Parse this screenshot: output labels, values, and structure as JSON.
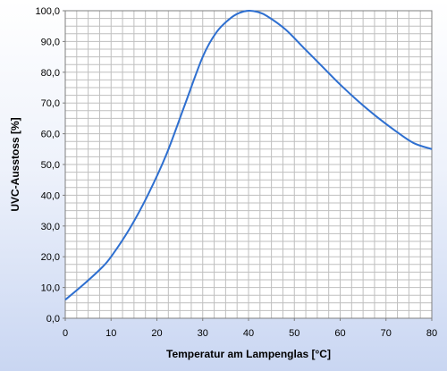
{
  "chart_data": {
    "type": "line",
    "title": "",
    "xlabel": "Temperatur am Lampenglas [°C]",
    "ylabel": "UVC-Ausstoss [%]",
    "xlim": [
      0,
      80
    ],
    "ylim": [
      0,
      100
    ],
    "x_ticks": [
      "0",
      "10",
      "20",
      "30",
      "40",
      "50",
      "60",
      "70",
      "80"
    ],
    "y_ticks": [
      "0,0",
      "10,0",
      "20,0",
      "30,0",
      "40,0",
      "50,0",
      "60,0",
      "70,0",
      "80,0",
      "90,0",
      "100,0"
    ],
    "grid": true,
    "colors": {
      "line": "#2e6fd0",
      "grid": "#bfbfbf",
      "plot_bg": "#ffffff"
    },
    "series": [
      {
        "x": [
          0,
          4,
          8,
          10,
          14,
          18,
          22,
          26,
          30,
          33,
          36,
          38,
          40,
          42,
          44,
          48,
          52,
          56,
          60,
          64,
          68,
          72,
          76,
          80
        ],
        "values": [
          6.0,
          11.0,
          16.5,
          20.0,
          29.0,
          40.0,
          53.0,
          69.0,
          85.0,
          93.0,
          97.5,
          99.3,
          100.0,
          99.6,
          98.3,
          94.0,
          88.0,
          82.0,
          76.0,
          70.5,
          65.5,
          61.0,
          57.0,
          55.0
        ]
      }
    ]
  }
}
